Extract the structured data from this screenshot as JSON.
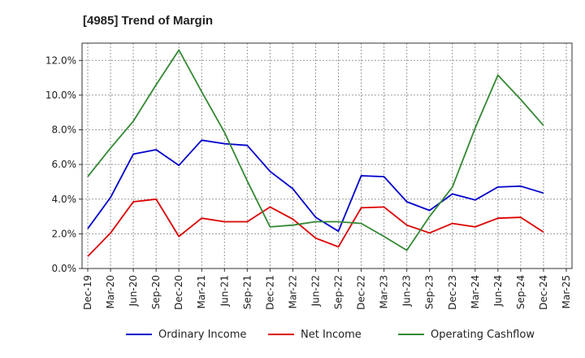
{
  "chart_data": {
    "type": "line",
    "title": "[4985]  Trend of Margin",
    "xlabel": "",
    "ylabel": "",
    "ylim": [
      0,
      13
    ],
    "yticks": [
      0,
      2,
      4,
      6,
      8,
      10,
      12
    ],
    "ytick_labels": [
      "0.0%",
      "2.0%",
      "4.0%",
      "6.0%",
      "8.0%",
      "10.0%",
      "12.0%"
    ],
    "grid": true,
    "legend_position": "bottom",
    "categories": [
      "Dec-19",
      "Mar-20",
      "Jun-20",
      "Sep-20",
      "Dec-20",
      "Mar-21",
      "Jun-21",
      "Sep-21",
      "Dec-21",
      "Mar-22",
      "Jun-22",
      "Sep-22",
      "Dec-22",
      "Mar-23",
      "Jun-23",
      "Sep-23",
      "Dec-23",
      "Mar-24",
      "Jun-24",
      "Sep-24",
      "Dec-24",
      "Mar-25"
    ],
    "series": [
      {
        "name": "Ordinary Income",
        "color": "#0000cc",
        "values": [
          2.3,
          4.1,
          6.6,
          6.85,
          5.95,
          7.4,
          7.2,
          7.1,
          5.6,
          4.6,
          2.95,
          2.15,
          5.35,
          5.3,
          3.85,
          3.35,
          4.3,
          3.95,
          4.7,
          4.75,
          4.35,
          null
        ]
      },
      {
        "name": "Net Income",
        "color": "#dd0000",
        "values": [
          0.7,
          2.05,
          3.85,
          4.0,
          1.85,
          2.9,
          2.7,
          2.7,
          3.55,
          2.85,
          1.75,
          1.25,
          3.5,
          3.55,
          2.5,
          2.05,
          2.6,
          2.4,
          2.9,
          2.95,
          2.1,
          null
        ]
      },
      {
        "name": "Operating Cashflow",
        "color": "#338833",
        "values": [
          5.3,
          6.95,
          8.5,
          10.6,
          12.6,
          10.2,
          7.85,
          5.05,
          2.4,
          2.5,
          2.7,
          2.7,
          2.6,
          1.85,
          1.05,
          3.0,
          4.7,
          8.1,
          11.15,
          9.75,
          8.25,
          null
        ]
      }
    ]
  }
}
